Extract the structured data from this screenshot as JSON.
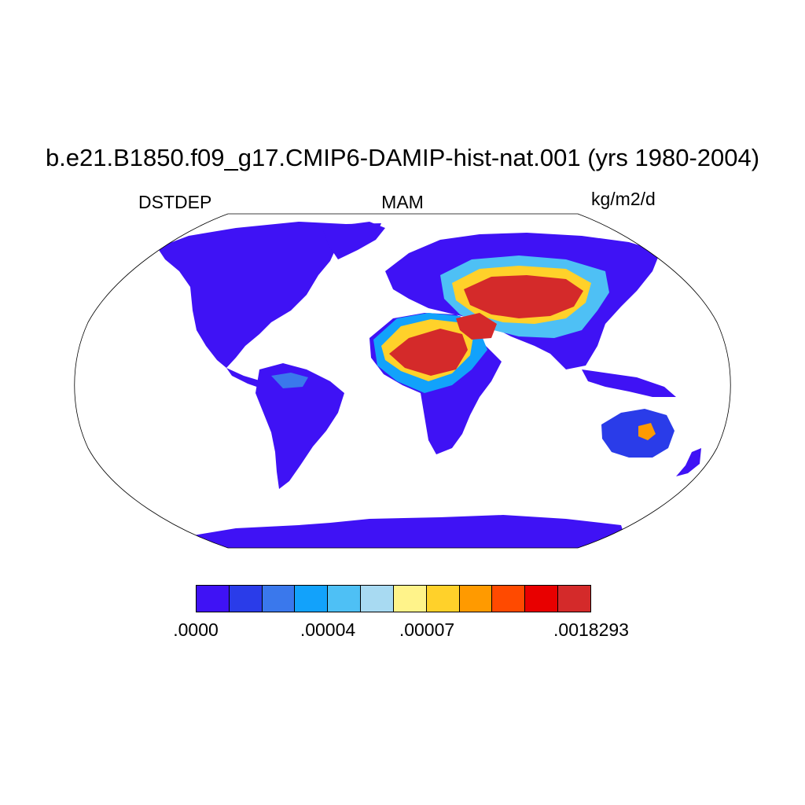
{
  "title": "b.e21.B1850.f09_g17.CMIP6-DAMIP-hist-nat.001 (yrs 1980-2004)",
  "variable": "DSTDEP",
  "season": "MAM",
  "units": "kg/m2/d",
  "projection": "Robinson",
  "colorbar": {
    "colors": [
      "#3f12f5",
      "#2a3ce9",
      "#3a78ec",
      "#12a2fb",
      "#4ec0f5",
      "#a8daf2",
      "#fff38a",
      "#ffd12a",
      "#ff9a00",
      "#ff4a00",
      "#e80000",
      "#d42a2a"
    ],
    "labels": [
      ".0000",
      ".00004",
      ".00007",
      ".0018293"
    ]
  },
  "palette": {
    "land_low": "#3f12f5",
    "ocean": "#ffffff",
    "outline": "#000000"
  }
}
